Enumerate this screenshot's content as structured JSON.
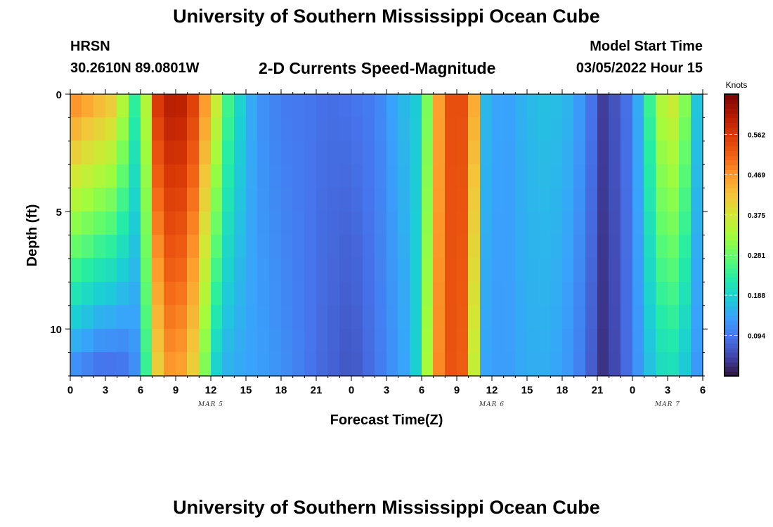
{
  "header": {
    "title": "University of Southern Mississippi Ocean Cube",
    "station": "HRSN",
    "coordinates": "30.2610N  89.0801W",
    "subtitle": "2-D Currents Speed-Magnitude",
    "model_start_label": "Model Start Time",
    "model_start_value": "03/05/2022 Hour 15"
  },
  "footer": {
    "title": "University of Southern Mississippi Ocean Cube"
  },
  "chart_data": {
    "type": "heatmap",
    "title": "2-D Currents Speed-Magnitude",
    "xlabel": "Forecast Time(Z)",
    "ylabel": "Depth (ft)",
    "colorbar_label": "Knots",
    "colorbar_ticks": [
      "0.094",
      "0.188",
      "0.281",
      "0.375",
      "0.469",
      "0.562"
    ],
    "colorbar_range": [
      0,
      0.656
    ],
    "xlim": [
      0,
      54
    ],
    "ylim": [
      0,
      12
    ],
    "x_ticks": [
      {
        "x": 0,
        "label": "0"
      },
      {
        "x": 3,
        "label": "3"
      },
      {
        "x": 6,
        "label": "6"
      },
      {
        "x": 9,
        "label": "9"
      },
      {
        "x": 12,
        "label": "12"
      },
      {
        "x": 15,
        "label": "15"
      },
      {
        "x": 18,
        "label": "18"
      },
      {
        "x": 21,
        "label": "21"
      },
      {
        "x": 24,
        "label": "0"
      },
      {
        "x": 27,
        "label": "3"
      },
      {
        "x": 30,
        "label": "6"
      },
      {
        "x": 33,
        "label": "9"
      },
      {
        "x": 36,
        "label": "12"
      },
      {
        "x": 39,
        "label": "15"
      },
      {
        "x": 42,
        "label": "18"
      },
      {
        "x": 45,
        "label": "21"
      },
      {
        "x": 48,
        "label": "0"
      },
      {
        "x": 51,
        "label": "3"
      },
      {
        "x": 54,
        "label": "6"
      }
    ],
    "date_labels": [
      {
        "x": 12,
        "label": "MAR 5"
      },
      {
        "x": 36,
        "label": "MAR 6"
      },
      {
        "x": 51,
        "label": "MAR 7"
      }
    ],
    "y_ticks": [
      {
        "y": 0,
        "label": "0"
      },
      {
        "y": 5,
        "label": "5"
      },
      {
        "y": 10,
        "label": "10"
      }
    ],
    "depth_levels": 12,
    "time_steps": 54,
    "profile": {
      "surface_anchors": [
        [
          0,
          0.48
        ],
        [
          4,
          0.4
        ],
        [
          5,
          0.28
        ],
        [
          6,
          0.19
        ],
        [
          6.7,
          0.4
        ],
        [
          7.5,
          0.56
        ],
        [
          9,
          0.62
        ],
        [
          10.5,
          0.55
        ],
        [
          12,
          0.42
        ],
        [
          13.5,
          0.25
        ],
        [
          15,
          0.16
        ],
        [
          16.5,
          0.12
        ],
        [
          18,
          0.1
        ],
        [
          20,
          0.095
        ],
        [
          22,
          0.085
        ],
        [
          24,
          0.09
        ],
        [
          26,
          0.1
        ],
        [
          28,
          0.15
        ],
        [
          30,
          0.19
        ],
        [
          31,
          0.4
        ],
        [
          32,
          0.52
        ],
        [
          33,
          0.55
        ],
        [
          34,
          0.52
        ],
        [
          34.8,
          0.4
        ],
        [
          35.5,
          0.16
        ],
        [
          37,
          0.13
        ],
        [
          39,
          0.16
        ],
        [
          41,
          0.17
        ],
        [
          43,
          0.15
        ],
        [
          44.5,
          0.09
        ],
        [
          45.5,
          0.04
        ],
        [
          46.5,
          0.06
        ],
        [
          48,
          0.1
        ],
        [
          49,
          0.19
        ],
        [
          50,
          0.3
        ],
        [
          51,
          0.38
        ],
        [
          52,
          0.35
        ],
        [
          53,
          0.25
        ],
        [
          54,
          0.1
        ]
      ],
      "bottom_anchors": [
        [
          0,
          0.12
        ],
        [
          1,
          0.12
        ],
        [
          2,
          0.095
        ],
        [
          3,
          0.09
        ],
        [
          4.5,
          0.095
        ],
        [
          6,
          0.13
        ],
        [
          7,
          0.36
        ],
        [
          8,
          0.46
        ],
        [
          9,
          0.48
        ],
        [
          10,
          0.44
        ],
        [
          11,
          0.38
        ],
        [
          12,
          0.22
        ],
        [
          13,
          0.16
        ],
        [
          15,
          0.14
        ],
        [
          17,
          0.13
        ],
        [
          19,
          0.11
        ],
        [
          21,
          0.085
        ],
        [
          23,
          0.07
        ],
        [
          24,
          0.06
        ],
        [
          25,
          0.075
        ],
        [
          27,
          0.11
        ],
        [
          29,
          0.15
        ],
        [
          30,
          0.22
        ],
        [
          31,
          0.44
        ],
        [
          32,
          0.52
        ],
        [
          33,
          0.54
        ],
        [
          34,
          0.5
        ],
        [
          34.8,
          0.28
        ],
        [
          35.5,
          0.14
        ],
        [
          37,
          0.13
        ],
        [
          39,
          0.15
        ],
        [
          41,
          0.15
        ],
        [
          43,
          0.12
        ],
        [
          44.5,
          0.07
        ],
        [
          45.5,
          0.03
        ],
        [
          46.5,
          0.05
        ],
        [
          48,
          0.1
        ],
        [
          49,
          0.15
        ],
        [
          50,
          0.19
        ],
        [
          51,
          0.22
        ],
        [
          52,
          0.2
        ],
        [
          53,
          0.16
        ],
        [
          54,
          0.1
        ]
      ]
    }
  }
}
